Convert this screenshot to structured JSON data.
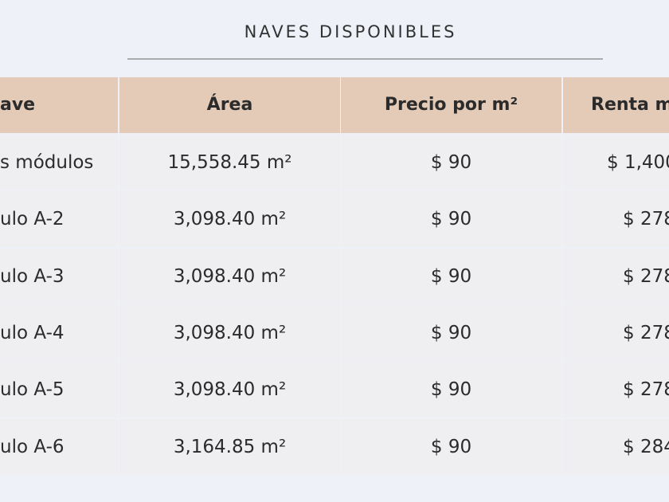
{
  "header": {
    "title": "NAVES DISPONIBLES"
  },
  "table": {
    "columns": [
      "ave",
      "Área",
      "Precio por m²",
      "Renta m"
    ],
    "rows": [
      [
        "s módulos",
        "15,558.45 m²",
        "$ 90",
        "$ 1,400"
      ],
      [
        "ulo A-2",
        "3,098.40 m²",
        "$ 90",
        "$ 278"
      ],
      [
        "ulo A-3",
        "3,098.40 m²",
        "$ 90",
        "$ 278"
      ],
      [
        "ulo A-4",
        "3,098.40 m²",
        "$ 90",
        "$ 278"
      ],
      [
        "ulo A-5",
        "3,098.40 m²",
        "$ 90",
        "$ 278"
      ],
      [
        "ulo A-6",
        "3,164.85 m²",
        "$ 90",
        "$ 284"
      ]
    ]
  }
}
